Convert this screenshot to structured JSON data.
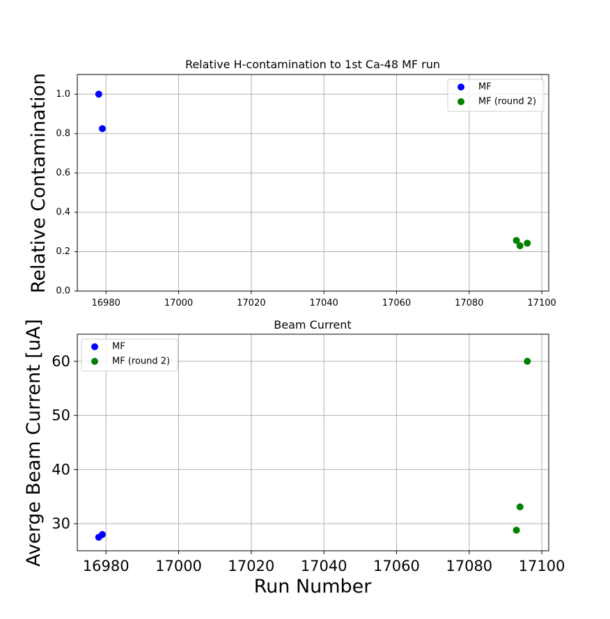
{
  "chart_data": [
    {
      "type": "scatter",
      "title": "Relative H-contamination to 1st Ca-48 MF run",
      "xlabel": "",
      "ylabel": "Relative Contamination",
      "xlim": [
        16972.1,
        17101.9
      ],
      "ylim": [
        0.0,
        1.1
      ],
      "x_ticks": [
        16980,
        17000,
        17020,
        17040,
        17060,
        17080,
        17100
      ],
      "y_ticks": [
        0.0,
        0.2,
        0.4,
        0.6,
        0.8,
        1.0
      ],
      "y_tick_labels": [
        "0.0",
        "0.2",
        "0.4",
        "0.6",
        "0.8",
        "1.0"
      ],
      "grid": true,
      "legend_position": "top-right",
      "series": [
        {
          "name": "MF",
          "color": "#0000ff",
          "x": [
            16978,
            16979
          ],
          "y": [
            1.0,
            0.825
          ]
        },
        {
          "name": "MF (round 2)",
          "color": "#008000",
          "x": [
            17093,
            17094,
            17096
          ],
          "y": [
            0.257,
            0.23,
            0.243
          ]
        }
      ]
    },
    {
      "type": "scatter",
      "title": "Beam Current",
      "xlabel": "Run Number",
      "ylabel": "Averge Beam Current [uA]",
      "xlim": [
        16972.1,
        17101.9
      ],
      "ylim": [
        25.0,
        65.0
      ],
      "x_ticks": [
        16980,
        17000,
        17020,
        17040,
        17060,
        17080,
        17100
      ],
      "y_ticks": [
        30,
        40,
        50,
        60
      ],
      "y_tick_labels": [
        "30",
        "40",
        "50",
        "60"
      ],
      "grid": true,
      "legend_position": "top-left",
      "series": [
        {
          "name": "MF",
          "color": "#0000ff",
          "x": [
            16978,
            16979
          ],
          "y": [
            27.5,
            28.0
          ]
        },
        {
          "name": "MF (round 2)",
          "color": "#008000",
          "x": [
            17093,
            17094,
            17096
          ],
          "y": [
            28.8,
            33.1,
            60.0
          ]
        }
      ]
    }
  ]
}
